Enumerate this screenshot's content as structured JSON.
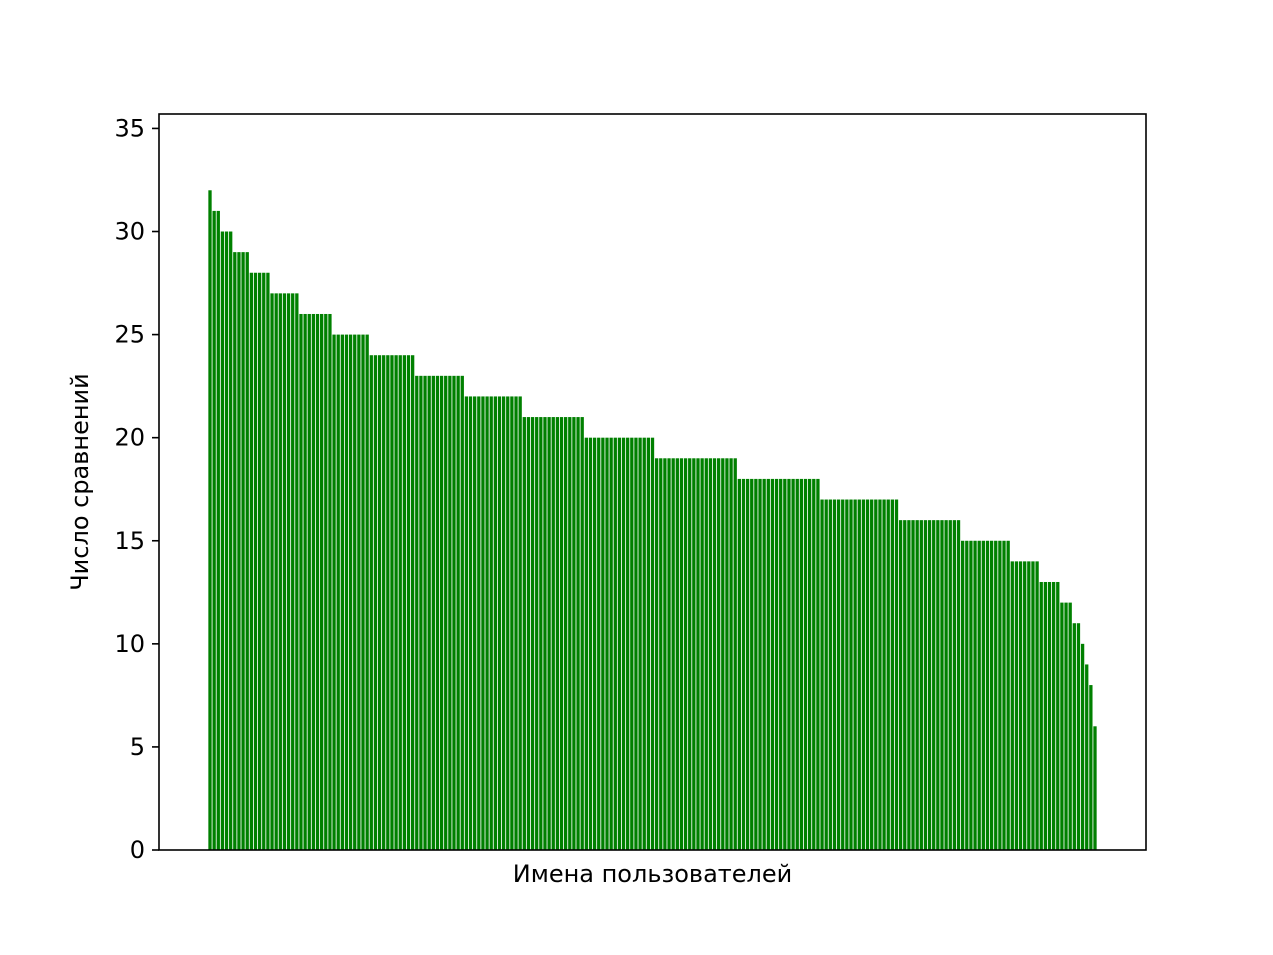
{
  "chart_data": {
    "type": "bar",
    "title": "",
    "xlabel": "Имена пользователей",
    "ylabel": "Число сравнений",
    "ylim": [
      0,
      35.7
    ],
    "yticks": [
      0,
      5,
      10,
      15,
      20,
      25,
      30,
      35
    ],
    "ytick_labels": [
      "0",
      "5",
      "10",
      "15",
      "20",
      "25",
      "30",
      "35"
    ],
    "categories_shown": false,
    "grid": false,
    "bar_color": "#008000",
    "values": [
      32,
      31,
      31,
      30,
      30,
      30,
      29,
      29,
      29,
      29,
      28,
      28,
      28,
      28,
      28,
      27,
      27,
      27,
      27,
      27,
      27,
      27,
      26,
      26,
      26,
      26,
      26,
      26,
      26,
      26,
      25,
      25,
      25,
      25,
      25,
      25,
      25,
      25,
      25,
      24,
      24,
      24,
      24,
      24,
      24,
      24,
      24,
      24,
      24,
      24,
      23,
      23,
      23,
      23,
      23,
      23,
      23,
      23,
      23,
      23,
      23,
      23,
      22,
      22,
      22,
      22,
      22,
      22,
      22,
      22,
      22,
      22,
      22,
      22,
      22,
      22,
      21,
      21,
      21,
      21,
      21,
      21,
      21,
      21,
      21,
      21,
      21,
      21,
      21,
      21,
      21,
      20,
      20,
      20,
      20,
      20,
      20,
      20,
      20,
      20,
      20,
      20,
      20,
      20,
      20,
      20,
      20,
      20,
      19,
      19,
      19,
      19,
      19,
      19,
      19,
      19,
      19,
      19,
      19,
      19,
      19,
      19,
      19,
      19,
      19,
      19,
      19,
      19,
      18,
      18,
      18,
      18,
      18,
      18,
      18,
      18,
      18,
      18,
      18,
      18,
      18,
      18,
      18,
      18,
      18,
      18,
      18,
      18,
      17,
      17,
      17,
      17,
      17,
      17,
      17,
      17,
      17,
      17,
      17,
      17,
      17,
      17,
      17,
      17,
      17,
      17,
      17,
      16,
      16,
      16,
      16,
      16,
      16,
      16,
      16,
      16,
      16,
      16,
      16,
      16,
      16,
      16,
      15,
      15,
      15,
      15,
      15,
      15,
      15,
      15,
      15,
      15,
      15,
      15,
      14,
      14,
      14,
      14,
      14,
      14,
      14,
      13,
      13,
      13,
      13,
      13,
      12,
      12,
      12,
      11,
      11,
      10,
      9,
      8,
      6
    ]
  }
}
